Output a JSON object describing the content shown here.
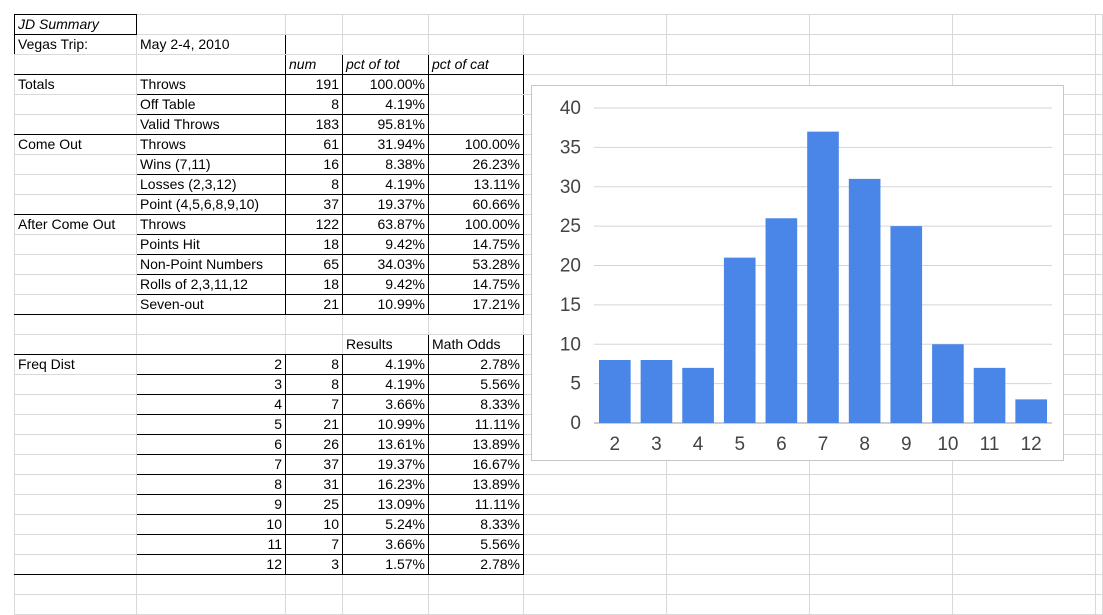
{
  "sheet": {
    "title": "JD Summary",
    "trip_label": "Vegas Trip:",
    "trip_dates": "May 2-4, 2010",
    "headers": {
      "num": "num",
      "pct_tot": "pct of tot",
      "pct_cat": "pct of cat",
      "results": "Results",
      "math_odds": "Math Odds"
    },
    "sections": [
      {
        "name": "Totals",
        "rows": [
          {
            "label": "Throws",
            "num": "191",
            "pct_tot": "100.00%",
            "pct_cat": ""
          },
          {
            "label": "Off Table",
            "num": "8",
            "pct_tot": "4.19%",
            "pct_cat": ""
          },
          {
            "label": "Valid Throws",
            "num": "183",
            "pct_tot": "95.81%",
            "pct_cat": ""
          }
        ]
      },
      {
        "name": "Come Out",
        "rows": [
          {
            "label": "Throws",
            "num": "61",
            "pct_tot": "31.94%",
            "pct_cat": "100.00%"
          },
          {
            "label": "Wins (7,11)",
            "num": "16",
            "pct_tot": "8.38%",
            "pct_cat": "26.23%"
          },
          {
            "label": "Losses (2,3,12)",
            "num": "8",
            "pct_tot": "4.19%",
            "pct_cat": "13.11%"
          },
          {
            "label": "Point (4,5,6,8,9,10)",
            "num": "37",
            "pct_tot": "19.37%",
            "pct_cat": "60.66%"
          }
        ]
      },
      {
        "name": "After Come Out",
        "rows": [
          {
            "label": "Throws",
            "num": "122",
            "pct_tot": "63.87%",
            "pct_cat": "100.00%"
          },
          {
            "label": "Points Hit",
            "num": "18",
            "pct_tot": "9.42%",
            "pct_cat": "14.75%"
          },
          {
            "label": "Non-Point Numbers",
            "num": "65",
            "pct_tot": "34.03%",
            "pct_cat": "53.28%"
          },
          {
            "label": "Rolls of 2,3,11,12",
            "num": "18",
            "pct_tot": "9.42%",
            "pct_cat": "14.75%"
          },
          {
            "label": "Seven-out",
            "num": "21",
            "pct_tot": "10.99%",
            "pct_cat": "17.21%"
          }
        ]
      }
    ],
    "freq_dist": {
      "label": "Freq Dist",
      "rows": [
        {
          "roll": "2",
          "num": "8",
          "results": "4.19%",
          "odds": "2.78%"
        },
        {
          "roll": "3",
          "num": "8",
          "results": "4.19%",
          "odds": "5.56%"
        },
        {
          "roll": "4",
          "num": "7",
          "results": "3.66%",
          "odds": "8.33%"
        },
        {
          "roll": "5",
          "num": "21",
          "results": "10.99%",
          "odds": "11.11%"
        },
        {
          "roll": "6",
          "num": "26",
          "results": "13.61%",
          "odds": "13.89%"
        },
        {
          "roll": "7",
          "num": "37",
          "results": "19.37%",
          "odds": "16.67%"
        },
        {
          "roll": "8",
          "num": "31",
          "results": "16.23%",
          "odds": "13.89%"
        },
        {
          "roll": "9",
          "num": "25",
          "results": "13.09%",
          "odds": "11.11%"
        },
        {
          "roll": "10",
          "num": "10",
          "results": "5.24%",
          "odds": "8.33%"
        },
        {
          "roll": "11",
          "num": "7",
          "results": "3.66%",
          "odds": "5.56%"
        },
        {
          "roll": "12",
          "num": "3",
          "results": "1.57%",
          "odds": "2.78%"
        }
      ]
    }
  },
  "chart_data": {
    "type": "bar",
    "categories": [
      "2",
      "3",
      "4",
      "5",
      "6",
      "7",
      "8",
      "9",
      "10",
      "11",
      "12"
    ],
    "values": [
      8,
      8,
      7,
      21,
      26,
      37,
      31,
      25,
      10,
      7,
      3
    ],
    "ylim": [
      0,
      40
    ],
    "yticks": [
      "0",
      "5",
      "10",
      "15",
      "20",
      "25",
      "30",
      "35",
      "40"
    ],
    "grid": true,
    "legend": "none",
    "bar_color": "#4a86e8"
  }
}
